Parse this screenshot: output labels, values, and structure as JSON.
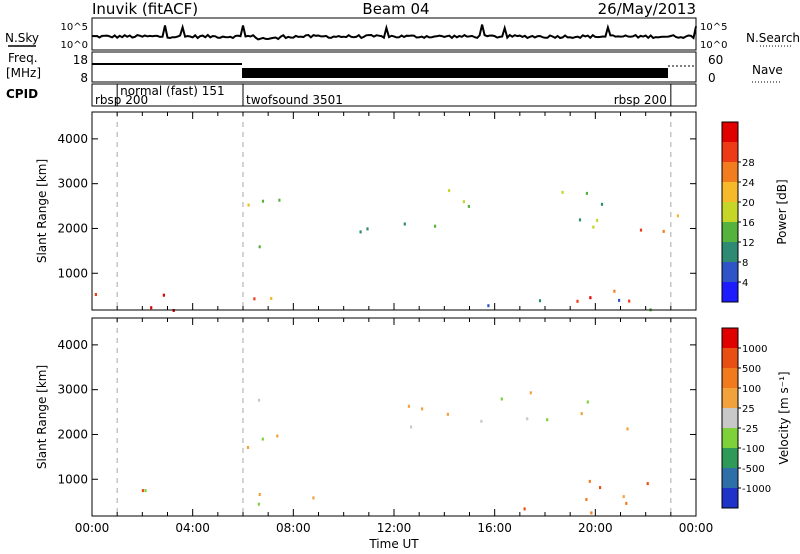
{
  "header": {
    "title": "Inuvik (fitACF)",
    "beam": "Beam 04",
    "date": "26/May/2013"
  },
  "summary": {
    "nsky_label": "N.Sky",
    "nsearch_label": "N.Search",
    "freq_label_line1": "Freq.",
    "freq_label_line2": "[MHz]",
    "nave_label": "Nave",
    "cpid_label": "CPID",
    "noise_ticks": [
      "10^5",
      "10^0"
    ],
    "freq_ticks": [
      "18",
      "8"
    ],
    "nave_ticks": [
      "60",
      "0"
    ],
    "modes": [
      {
        "label": "rbsp 200",
        "start": 0,
        "end": 1
      },
      {
        "label": "normal (fast) 151",
        "start": 1,
        "end": 6
      },
      {
        "label": "twofsound 3501",
        "start": 6,
        "end": 23
      },
      {
        "label": "rbsp 200",
        "start": 23,
        "end": 24
      }
    ]
  },
  "chart_data": [
    {
      "type": "heatmap",
      "name": "power",
      "xlabel": "Time UT",
      "ylabel": "Slant Range [km]",
      "xlim": [
        0,
        24
      ],
      "ylim": [
        180,
        4600
      ],
      "x_ticks": [
        "00:00",
        "04:00",
        "08:00",
        "12:00",
        "16:00",
        "20:00",
        "00:00"
      ],
      "y_ticks": [
        1000,
        2000,
        3000,
        4000
      ],
      "colorbar_label": "Power [dB]",
      "colorbar_ticks": [
        "4",
        "8",
        "12",
        "16",
        "20",
        "24",
        "28"
      ],
      "colorbar_colors": [
        "#1c1cff",
        "#2f54c8",
        "#2e8a72",
        "#55b23d",
        "#c6d628",
        "#f5b92a",
        "#f27d1e",
        "#ee3b17",
        "#e00000"
      ],
      "regions": [
        {
          "x0": 0.0,
          "x1": 6.0,
          "y0": 200,
          "y1": 800,
          "level": 8
        },
        {
          "x0": 6.0,
          "x1": 9.0,
          "y0": 300,
          "y1": 800,
          "level": 6
        },
        {
          "x0": 9.0,
          "x1": 24.0,
          "y0": 200,
          "y1": 450,
          "level": 2
        },
        {
          "x0": 18.0,
          "x1": 23.5,
          "y0": 300,
          "y1": 900,
          "level": 7
        },
        {
          "x0": 14.0,
          "x1": 21.0,
          "y0": 1900,
          "y1": 3000,
          "level": 3
        },
        {
          "x0": 10.0,
          "x1": 14.0,
          "y0": 1800,
          "y1": 2600,
          "level": 2
        },
        {
          "x0": 6.0,
          "x1": 7.5,
          "y0": 1000,
          "y1": 3300,
          "level": 4
        },
        {
          "x0": 21.0,
          "x1": 23.5,
          "y0": 1500,
          "y1": 2500,
          "level": 6
        }
      ]
    },
    {
      "type": "heatmap",
      "name": "velocity",
      "xlabel": "Time UT",
      "ylabel": "Slant Range [km]",
      "xlim": [
        0,
        24
      ],
      "ylim": [
        180,
        4600
      ],
      "x_ticks": [
        "00:00",
        "04:00",
        "08:00",
        "12:00",
        "16:00",
        "20:00",
        "00:00"
      ],
      "y_ticks": [
        1000,
        2000,
        3000,
        4000
      ],
      "colorbar_label": "Velocity [m s⁻¹]",
      "colorbar_ticks": [
        "1000",
        "500",
        "100",
        "25",
        "-25",
        "-100",
        "-500",
        "-1000"
      ],
      "colorbar_colors": [
        "#2033c8",
        "#2f6fa8",
        "#2f9a58",
        "#7fd13b",
        "#c8c8c8",
        "#f2a23a",
        "#f07a1c",
        "#e94e12",
        "#e00000"
      ],
      "regions": [
        {
          "x0": 0.0,
          "x1": 2.0,
          "y0": 200,
          "y1": 800,
          "level": 6
        },
        {
          "x0": 2.0,
          "x1": 9.0,
          "y0": 300,
          "y1": 800,
          "level": 4
        },
        {
          "x0": 14.0,
          "x1": 22.0,
          "y0": 200,
          "y1": 600,
          "level": 6
        },
        {
          "x0": 19.0,
          "x1": 23.5,
          "y0": 300,
          "y1": 1000,
          "level": 6
        },
        {
          "x0": 12.0,
          "x1": 22.0,
          "y0": 1900,
          "y1": 3000,
          "level": 4
        },
        {
          "x0": 6.0,
          "x1": 8.0,
          "y0": 1500,
          "y1": 3300,
          "level": 4
        }
      ]
    }
  ]
}
